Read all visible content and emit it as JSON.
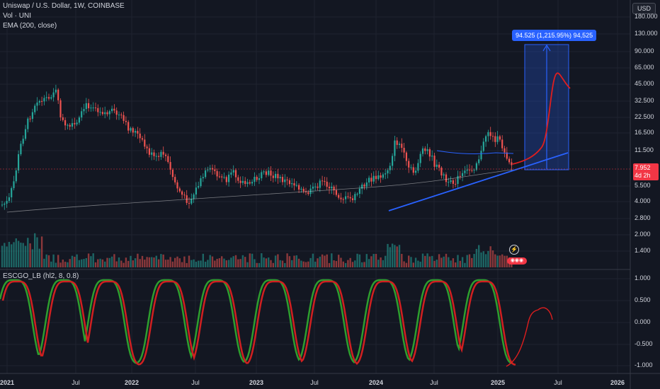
{
  "header": {
    "symbol_title": "Uniswap / U.S. Dollar, 1W, COINBASE",
    "volume_label": "Vol · UNI",
    "ema_label": "EMA (200, close)",
    "oscillator_label": "ESCGO_LB (hl2, 8, 0.8)"
  },
  "price_axis": {
    "currency": "USD",
    "labels": [
      "180.000",
      "130.000",
      "90.000",
      "65.000",
      "45.000",
      "32.500",
      "22.500",
      "16.500",
      "11.500",
      "5.500",
      "4.000",
      "2.800",
      "2.000",
      "1.400"
    ],
    "last_price": "7.952",
    "countdown": "4d 2h"
  },
  "osc_axis": {
    "labels": [
      "1.000",
      "0.500",
      "0.000",
      "-0.500",
      "-1.000"
    ]
  },
  "time_axis": {
    "labels": [
      "2021",
      "Jul",
      "2022",
      "Jul",
      "2023",
      "Jul",
      "2024",
      "Jul",
      "2025",
      "Jul",
      "2026"
    ]
  },
  "measurement": {
    "label": "94.525 (1,215.95%) 94,525"
  },
  "icons": {
    "flash": "flash-icon",
    "events": "earnings-events-icon"
  },
  "colors": {
    "background": "#131722",
    "up": "#26a69a",
    "down": "#ef5350",
    "ema": "#e0e0e0",
    "trendline": "#2962ff",
    "projection": "#e01e1e",
    "osc_up": "#2e9e2e",
    "osc_down": "#d02020"
  }
}
